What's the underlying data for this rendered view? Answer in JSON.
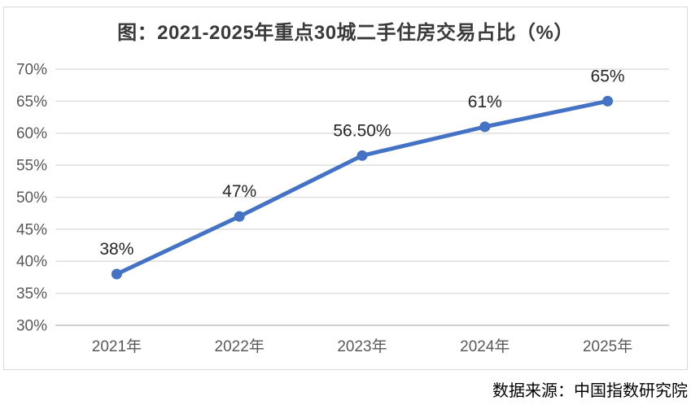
{
  "chart": {
    "title": "图：2021-2025年重点30城二手住房交易占比（%）"
  },
  "source": "数据来源：中国指数研究院",
  "colors": {
    "series_line": "#4472C4",
    "marker": "#4472C4",
    "gridline": "#D9D9D9",
    "axis_line": "#BFBFBF",
    "tick_label": "#595959",
    "data_label": "#262626",
    "title_text": "#3A3A3A",
    "frame_border": "#D9D9D9",
    "source_text": "#000000"
  },
  "chart_data": {
    "type": "line",
    "title": "图：2021-2025年重点30城二手住房交易占比（%）",
    "categories": [
      "2021年",
      "2022年",
      "2023年",
      "2024年",
      "2025年"
    ],
    "values": [
      38,
      47,
      56.5,
      61,
      65
    ],
    "data_labels": [
      "38%",
      "47%",
      "56.50%",
      "61%",
      "65%"
    ],
    "xlabel": "",
    "ylabel": "",
    "ylim": [
      30,
      70
    ],
    "ytick_step": 5,
    "ytick_labels": [
      "30%",
      "35%",
      "40%",
      "45%",
      "50%",
      "55%",
      "60%",
      "65%",
      "70%"
    ],
    "grid": true,
    "legend_position": "none",
    "marker_style": "circle",
    "data_label_position": "above"
  }
}
